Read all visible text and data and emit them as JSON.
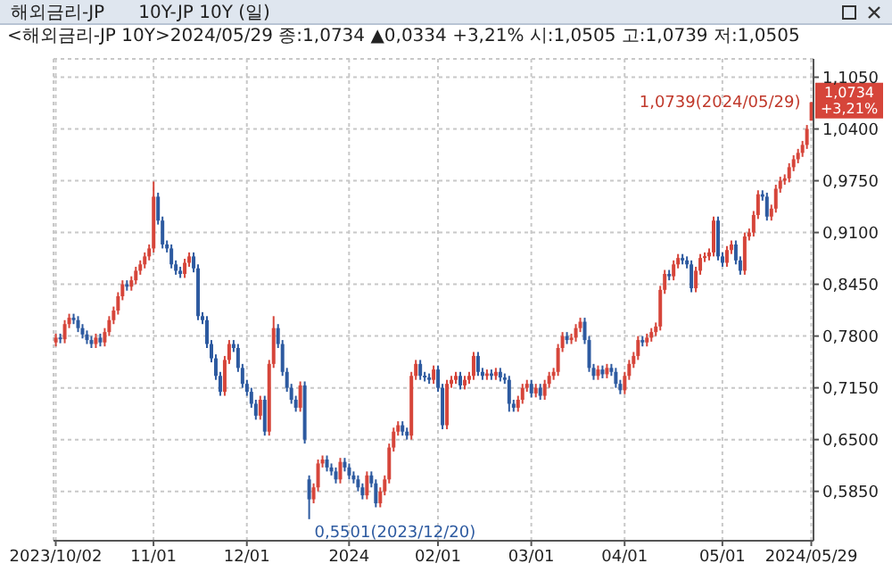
{
  "chart_data": {
    "type": "candlestick",
    "title": "해외금리-JP      10Y-JP 10Y (일)",
    "subtitle": "<해외금리-JP 10Y>2024/05/29 종:1,0734 ▲0,0334 +3,21% 시:1,0505 고:1,0739 저:1,0505",
    "categories": [
      "2023/10/02",
      null,
      null,
      null,
      null,
      null,
      null,
      null,
      null,
      null,
      null,
      null,
      null,
      null,
      null,
      null,
      null,
      null,
      null,
      null,
      null,
      null,
      "11/01",
      null,
      null,
      null,
      null,
      null,
      null,
      null,
      null,
      null,
      null,
      null,
      null,
      null,
      null,
      null,
      null,
      null,
      null,
      null,
      null,
      "12/01",
      null,
      null,
      null,
      null,
      null,
      null,
      null,
      null,
      null,
      null,
      null,
      null,
      null,
      null,
      null,
      null,
      null,
      null,
      null,
      null,
      null,
      null,
      "2024",
      null,
      null,
      null,
      null,
      null,
      null,
      null,
      null,
      null,
      null,
      null,
      null,
      null,
      null,
      null,
      null,
      null,
      null,
      null,
      "02/01",
      null,
      null,
      null,
      null,
      null,
      null,
      null,
      null,
      null,
      null,
      null,
      null,
      null,
      null,
      null,
      null,
      null,
      null,
      null,
      null,
      "03/01",
      null,
      null,
      null,
      null,
      null,
      null,
      null,
      null,
      null,
      null,
      null,
      null,
      null,
      null,
      null,
      null,
      null,
      null,
      null,
      null,
      "04/01",
      null,
      null,
      null,
      null,
      null,
      null,
      null,
      null,
      null,
      null,
      null,
      null,
      null,
      null,
      null,
      null,
      null,
      null,
      null,
      null,
      null,
      "05/01",
      null,
      null,
      null,
      null,
      null,
      null,
      null,
      null,
      null,
      null,
      null,
      null,
      null,
      null,
      null,
      null,
      null,
      null,
      null,
      "2024/05/29"
    ],
    "ohlc": [
      [
        0.772,
        0.783,
        0.767,
        0.778
      ],
      [
        0.778,
        0.783,
        0.771,
        0.776
      ],
      [
        0.776,
        0.8,
        0.771,
        0.795
      ],
      [
        0.795,
        0.808,
        0.79,
        0.803
      ],
      [
        0.803,
        0.808,
        0.795,
        0.8
      ],
      [
        0.8,
        0.805,
        0.785,
        0.79
      ],
      [
        0.79,
        0.795,
        0.777,
        0.782
      ],
      [
        0.782,
        0.787,
        0.77,
        0.775
      ],
      [
        0.775,
        0.78,
        0.765,
        0.77
      ],
      [
        0.77,
        0.783,
        0.765,
        0.778
      ],
      [
        0.778,
        0.783,
        0.767,
        0.772
      ],
      [
        0.772,
        0.79,
        0.767,
        0.785
      ],
      [
        0.785,
        0.805,
        0.78,
        0.8
      ],
      [
        0.8,
        0.817,
        0.795,
        0.812
      ],
      [
        0.812,
        0.835,
        0.807,
        0.83
      ],
      [
        0.83,
        0.85,
        0.825,
        0.845
      ],
      [
        0.845,
        0.85,
        0.837,
        0.842
      ],
      [
        0.842,
        0.855,
        0.837,
        0.85
      ],
      [
        0.85,
        0.867,
        0.845,
        0.862
      ],
      [
        0.862,
        0.875,
        0.857,
        0.87
      ],
      [
        0.87,
        0.885,
        0.865,
        0.88
      ],
      [
        0.88,
        0.895,
        0.875,
        0.89
      ],
      [
        0.89,
        0.974,
        0.885,
        0.955
      ],
      [
        0.955,
        0.96,
        0.92,
        0.925
      ],
      [
        0.925,
        0.93,
        0.89,
        0.895
      ],
      [
        0.895,
        0.9,
        0.885,
        0.89
      ],
      [
        0.89,
        0.895,
        0.865,
        0.87
      ],
      [
        0.87,
        0.875,
        0.857,
        0.862
      ],
      [
        0.862,
        0.867,
        0.853,
        0.858
      ],
      [
        0.858,
        0.877,
        0.853,
        0.872
      ],
      [
        0.872,
        0.885,
        0.867,
        0.88
      ],
      [
        0.88,
        0.885,
        0.86,
        0.865
      ],
      [
        0.865,
        0.87,
        0.8,
        0.805
      ],
      [
        0.805,
        0.81,
        0.795,
        0.8
      ],
      [
        0.8,
        0.805,
        0.765,
        0.77
      ],
      [
        0.77,
        0.775,
        0.747,
        0.752
      ],
      [
        0.752,
        0.757,
        0.725,
        0.73
      ],
      [
        0.73,
        0.735,
        0.705,
        0.71
      ],
      [
        0.71,
        0.755,
        0.705,
        0.75
      ],
      [
        0.75,
        0.775,
        0.745,
        0.77
      ],
      [
        0.77,
        0.775,
        0.76,
        0.765
      ],
      [
        0.765,
        0.77,
        0.735,
        0.74
      ],
      [
        0.74,
        0.745,
        0.715,
        0.72
      ],
      [
        0.72,
        0.725,
        0.705,
        0.71
      ],
      [
        0.71,
        0.715,
        0.69,
        0.695
      ],
      [
        0.695,
        0.7,
        0.675,
        0.68
      ],
      [
        0.68,
        0.705,
        0.675,
        0.7
      ],
      [
        0.7,
        0.705,
        0.655,
        0.66
      ],
      [
        0.66,
        0.75,
        0.655,
        0.745
      ],
      [
        0.745,
        0.805,
        0.74,
        0.79
      ],
      [
        0.79,
        0.795,
        0.765,
        0.77
      ],
      [
        0.77,
        0.775,
        0.73,
        0.735
      ],
      [
        0.735,
        0.74,
        0.71,
        0.715
      ],
      [
        0.715,
        0.72,
        0.695,
        0.7
      ],
      [
        0.7,
        0.705,
        0.685,
        0.69
      ],
      [
        0.69,
        0.723,
        0.685,
        0.718
      ],
      [
        0.718,
        0.723,
        0.645,
        0.65
      ],
      [
        0.6,
        0.605,
        0.5501,
        0.575
      ],
      [
        0.575,
        0.595,
        0.57,
        0.59
      ],
      [
        0.59,
        0.625,
        0.585,
        0.62
      ],
      [
        0.62,
        0.63,
        0.615,
        0.625
      ],
      [
        0.625,
        0.63,
        0.61,
        0.615
      ],
      [
        0.615,
        0.62,
        0.605,
        0.61
      ],
      [
        0.61,
        0.615,
        0.595,
        0.6
      ],
      [
        0.6,
        0.627,
        0.595,
        0.622
      ],
      [
        0.622,
        0.627,
        0.61,
        0.615
      ],
      [
        0.615,
        0.62,
        0.6,
        0.605
      ],
      [
        0.605,
        0.61,
        0.595,
        0.6
      ],
      [
        0.6,
        0.605,
        0.585,
        0.59
      ],
      [
        0.59,
        0.595,
        0.575,
        0.58
      ],
      [
        0.58,
        0.61,
        0.575,
        0.605
      ],
      [
        0.605,
        0.61,
        0.59,
        0.595
      ],
      [
        0.595,
        0.6,
        0.565,
        0.57
      ],
      [
        0.57,
        0.59,
        0.565,
        0.585
      ],
      [
        0.585,
        0.605,
        0.58,
        0.6
      ],
      [
        0.6,
        0.645,
        0.595,
        0.64
      ],
      [
        0.64,
        0.665,
        0.635,
        0.66
      ],
      [
        0.66,
        0.673,
        0.655,
        0.668
      ],
      [
        0.668,
        0.673,
        0.655,
        0.66
      ],
      [
        0.66,
        0.665,
        0.65,
        0.655
      ],
      [
        0.655,
        0.735,
        0.65,
        0.73
      ],
      [
        0.73,
        0.75,
        0.725,
        0.745
      ],
      [
        0.745,
        0.75,
        0.725,
        0.73
      ],
      [
        0.73,
        0.735,
        0.723,
        0.728
      ],
      [
        0.728,
        0.733,
        0.72,
        0.725
      ],
      [
        0.725,
        0.743,
        0.72,
        0.738
      ],
      [
        0.738,
        0.743,
        0.71,
        0.715
      ],
      [
        0.715,
        0.72,
        0.663,
        0.668
      ],
      [
        0.668,
        0.725,
        0.663,
        0.72
      ],
      [
        0.72,
        0.73,
        0.715,
        0.725
      ],
      [
        0.725,
        0.735,
        0.72,
        0.73
      ],
      [
        0.73,
        0.735,
        0.713,
        0.718
      ],
      [
        0.718,
        0.73,
        0.713,
        0.725
      ],
      [
        0.725,
        0.735,
        0.72,
        0.73
      ],
      [
        0.73,
        0.76,
        0.725,
        0.755
      ],
      [
        0.755,
        0.76,
        0.73,
        0.735
      ],
      [
        0.735,
        0.74,
        0.725,
        0.73
      ],
      [
        0.73,
        0.738,
        0.725,
        0.733
      ],
      [
        0.733,
        0.738,
        0.725,
        0.73
      ],
      [
        0.73,
        0.74,
        0.725,
        0.735
      ],
      [
        0.735,
        0.74,
        0.723,
        0.728
      ],
      [
        0.728,
        0.733,
        0.72,
        0.725
      ],
      [
        0.725,
        0.73,
        0.685,
        0.695
      ],
      [
        0.695,
        0.7,
        0.685,
        0.69
      ],
      [
        0.69,
        0.705,
        0.685,
        0.7
      ],
      [
        0.7,
        0.72,
        0.695,
        0.715
      ],
      [
        0.715,
        0.725,
        0.71,
        0.72
      ],
      [
        0.72,
        0.725,
        0.703,
        0.708
      ],
      [
        0.708,
        0.72,
        0.703,
        0.715
      ],
      [
        0.715,
        0.72,
        0.7,
        0.705
      ],
      [
        0.705,
        0.725,
        0.7,
        0.72
      ],
      [
        0.72,
        0.735,
        0.715,
        0.73
      ],
      [
        0.73,
        0.74,
        0.725,
        0.735
      ],
      [
        0.735,
        0.77,
        0.73,
        0.765
      ],
      [
        0.765,
        0.785,
        0.76,
        0.78
      ],
      [
        0.78,
        0.785,
        0.77,
        0.775
      ],
      [
        0.775,
        0.783,
        0.77,
        0.778
      ],
      [
        0.778,
        0.795,
        0.773,
        0.79
      ],
      [
        0.79,
        0.803,
        0.785,
        0.798
      ],
      [
        0.798,
        0.803,
        0.77,
        0.775
      ],
      [
        0.775,
        0.78,
        0.735,
        0.74
      ],
      [
        0.74,
        0.745,
        0.725,
        0.73
      ],
      [
        0.73,
        0.743,
        0.725,
        0.738
      ],
      [
        0.738,
        0.743,
        0.727,
        0.732
      ],
      [
        0.732,
        0.745,
        0.727,
        0.74
      ],
      [
        0.74,
        0.745,
        0.73,
        0.735
      ],
      [
        0.735,
        0.74,
        0.715,
        0.72
      ],
      [
        0.72,
        0.725,
        0.707,
        0.712
      ],
      [
        0.712,
        0.735,
        0.707,
        0.73
      ],
      [
        0.73,
        0.75,
        0.725,
        0.745
      ],
      [
        0.745,
        0.76,
        0.74,
        0.755
      ],
      [
        0.755,
        0.78,
        0.75,
        0.775
      ],
      [
        0.775,
        0.78,
        0.767,
        0.772
      ],
      [
        0.772,
        0.783,
        0.767,
        0.778
      ],
      [
        0.778,
        0.79,
        0.773,
        0.785
      ],
      [
        0.785,
        0.797,
        0.78,
        0.792
      ],
      [
        0.792,
        0.843,
        0.787,
        0.838
      ],
      [
        0.838,
        0.863,
        0.833,
        0.858
      ],
      [
        0.858,
        0.863,
        0.85,
        0.855
      ],
      [
        0.855,
        0.875,
        0.85,
        0.87
      ],
      [
        0.87,
        0.883,
        0.865,
        0.878
      ],
      [
        0.878,
        0.883,
        0.87,
        0.875
      ],
      [
        0.875,
        0.88,
        0.865,
        0.87
      ],
      [
        0.87,
        0.875,
        0.835,
        0.84
      ],
      [
        0.84,
        0.867,
        0.835,
        0.862
      ],
      [
        0.862,
        0.883,
        0.857,
        0.878
      ],
      [
        0.878,
        0.885,
        0.873,
        0.88
      ],
      [
        0.88,
        0.89,
        0.875,
        0.885
      ],
      [
        0.885,
        0.93,
        0.88,
        0.925
      ],
      [
        0.925,
        0.93,
        0.875,
        0.88
      ],
      [
        0.88,
        0.885,
        0.867,
        0.872
      ],
      [
        0.872,
        0.893,
        0.867,
        0.888
      ],
      [
        0.888,
        0.9,
        0.883,
        0.895
      ],
      [
        0.895,
        0.9,
        0.87,
        0.875
      ],
      [
        0.875,
        0.88,
        0.857,
        0.862
      ],
      [
        0.862,
        0.91,
        0.857,
        0.905
      ],
      [
        0.905,
        0.915,
        0.9,
        0.91
      ],
      [
        0.91,
        0.937,
        0.905,
        0.932
      ],
      [
        0.932,
        0.963,
        0.927,
        0.958
      ],
      [
        0.958,
        0.963,
        0.95,
        0.955
      ],
      [
        0.955,
        0.96,
        0.925,
        0.93
      ],
      [
        0.93,
        0.945,
        0.925,
        0.94
      ],
      [
        0.94,
        0.97,
        0.935,
        0.965
      ],
      [
        0.965,
        0.98,
        0.96,
        0.975
      ],
      [
        0.975,
        0.983,
        0.97,
        0.978
      ],
      [
        0.978,
        0.997,
        0.973,
        0.992
      ],
      [
        0.992,
        1.007,
        0.987,
        1.002
      ],
      [
        1.002,
        1.015,
        0.997,
        1.01
      ],
      [
        1.01,
        1.025,
        1.005,
        1.02
      ],
      [
        1.02,
        1.045,
        1.015,
        1.04
      ],
      [
        1.0505,
        1.0739,
        1.0505,
        1.0734
      ]
    ],
    "colors": [
      "#d6453a",
      "#2d5aa0",
      "#d6453a",
      "#d6453a",
      "#2d5aa0",
      "#2d5aa0",
      "#2d5aa0",
      "#2d5aa0",
      "#2d5aa0",
      "#d6453a",
      "#2d5aa0",
      "#d6453a",
      "#d6453a",
      "#d6453a",
      "#d6453a",
      "#d6453a",
      "#2d5aa0",
      "#d6453a",
      "#d6453a",
      "#d6453a",
      "#d6453a",
      "#d6453a",
      "#d6453a",
      "#2d5aa0",
      "#2d5aa0",
      "#2d5aa0",
      "#2d5aa0",
      "#2d5aa0",
      "#2d5aa0",
      "#d6453a",
      "#d6453a",
      "#2d5aa0",
      "#2d5aa0",
      "#2d5aa0",
      "#2d5aa0",
      "#2d5aa0",
      "#2d5aa0",
      "#2d5aa0",
      "#d6453a",
      "#d6453a",
      "#2d5aa0",
      "#2d5aa0",
      "#2d5aa0",
      "#2d5aa0",
      "#2d5aa0",
      "#2d5aa0",
      "#d6453a",
      "#2d5aa0",
      "#d6453a",
      "#d6453a",
      "#2d5aa0",
      "#2d5aa0",
      "#2d5aa0",
      "#2d5aa0",
      "#2d5aa0",
      "#d6453a",
      "#2d5aa0",
      "#2d5aa0",
      "#d6453a",
      "#d6453a",
      "#d6453a",
      "#2d5aa0",
      "#2d5aa0",
      "#2d5aa0",
      "#d6453a",
      "#2d5aa0",
      "#2d5aa0",
      "#2d5aa0",
      "#2d5aa0",
      "#2d5aa0",
      "#d6453a",
      "#2d5aa0",
      "#2d5aa0",
      "#d6453a",
      "#d6453a",
      "#d6453a",
      "#d6453a",
      "#d6453a",
      "#2d5aa0",
      "#2d5aa0",
      "#d6453a",
      "#d6453a",
      "#2d5aa0",
      "#2d5aa0",
      "#2d5aa0",
      "#d6453a",
      "#2d5aa0",
      "#2d5aa0",
      "#d6453a",
      "#d6453a",
      "#d6453a",
      "#2d5aa0",
      "#d6453a",
      "#d6453a",
      "#d6453a",
      "#2d5aa0",
      "#2d5aa0",
      "#d6453a",
      "#2d5aa0",
      "#d6453a",
      "#2d5aa0",
      "#2d5aa0",
      "#2d5aa0",
      "#2d5aa0",
      "#d6453a",
      "#d6453a",
      "#d6453a",
      "#2d5aa0",
      "#d6453a",
      "#2d5aa0",
      "#d6453a",
      "#d6453a",
      "#d6453a",
      "#d6453a",
      "#d6453a",
      "#2d5aa0",
      "#d6453a",
      "#d6453a",
      "#d6453a",
      "#2d5aa0",
      "#2d5aa0",
      "#2d5aa0",
      "#d6453a",
      "#2d5aa0",
      "#d6453a",
      "#2d5aa0",
      "#2d5aa0",
      "#2d5aa0",
      "#d6453a",
      "#d6453a",
      "#d6453a",
      "#d6453a",
      "#2d5aa0",
      "#d6453a",
      "#d6453a",
      "#d6453a",
      "#d6453a",
      "#d6453a",
      "#2d5aa0",
      "#d6453a",
      "#d6453a",
      "#2d5aa0",
      "#2d5aa0",
      "#2d5aa0",
      "#d6453a",
      "#d6453a",
      "#d6453a",
      "#d6453a",
      "#d6453a",
      "#2d5aa0",
      "#2d5aa0",
      "#d6453a",
      "#d6453a",
      "#2d5aa0",
      "#2d5aa0",
      "#d6453a",
      "#d6453a",
      "#d6453a",
      "#d6453a",
      "#2d5aa0",
      "#2d5aa0",
      "#d6453a",
      "#d6453a",
      "#d6453a",
      "#d6453a",
      "#d6453a",
      "#d6453a",
      "#d6453a",
      "#d6453a",
      "#d6453a",
      "#d6453a"
    ],
    "ylim": [
      0.523,
      1.128
    ],
    "yticks": [
      {
        "value": 0.585,
        "label": "0,5850"
      },
      {
        "value": 0.65,
        "label": "0,6500"
      },
      {
        "value": 0.715,
        "label": "0,7150"
      },
      {
        "value": 0.78,
        "label": "0,7800"
      },
      {
        "value": 0.845,
        "label": "0,8450"
      },
      {
        "value": 0.91,
        "label": "0,9100"
      },
      {
        "value": 0.975,
        "label": "0,9750"
      },
      {
        "value": 1.04,
        "label": "1,0400"
      },
      {
        "value": 1.105,
        "label": "1,1050"
      }
    ],
    "grid": true,
    "legend": false,
    "annotations": [
      {
        "text": "1,0739(2024/05/29)",
        "x": "2024/05/29",
        "y": 1.0739
      },
      "0,5501(2023/12/20)",
      "1,0734",
      "+3,21%"
    ]
  }
}
